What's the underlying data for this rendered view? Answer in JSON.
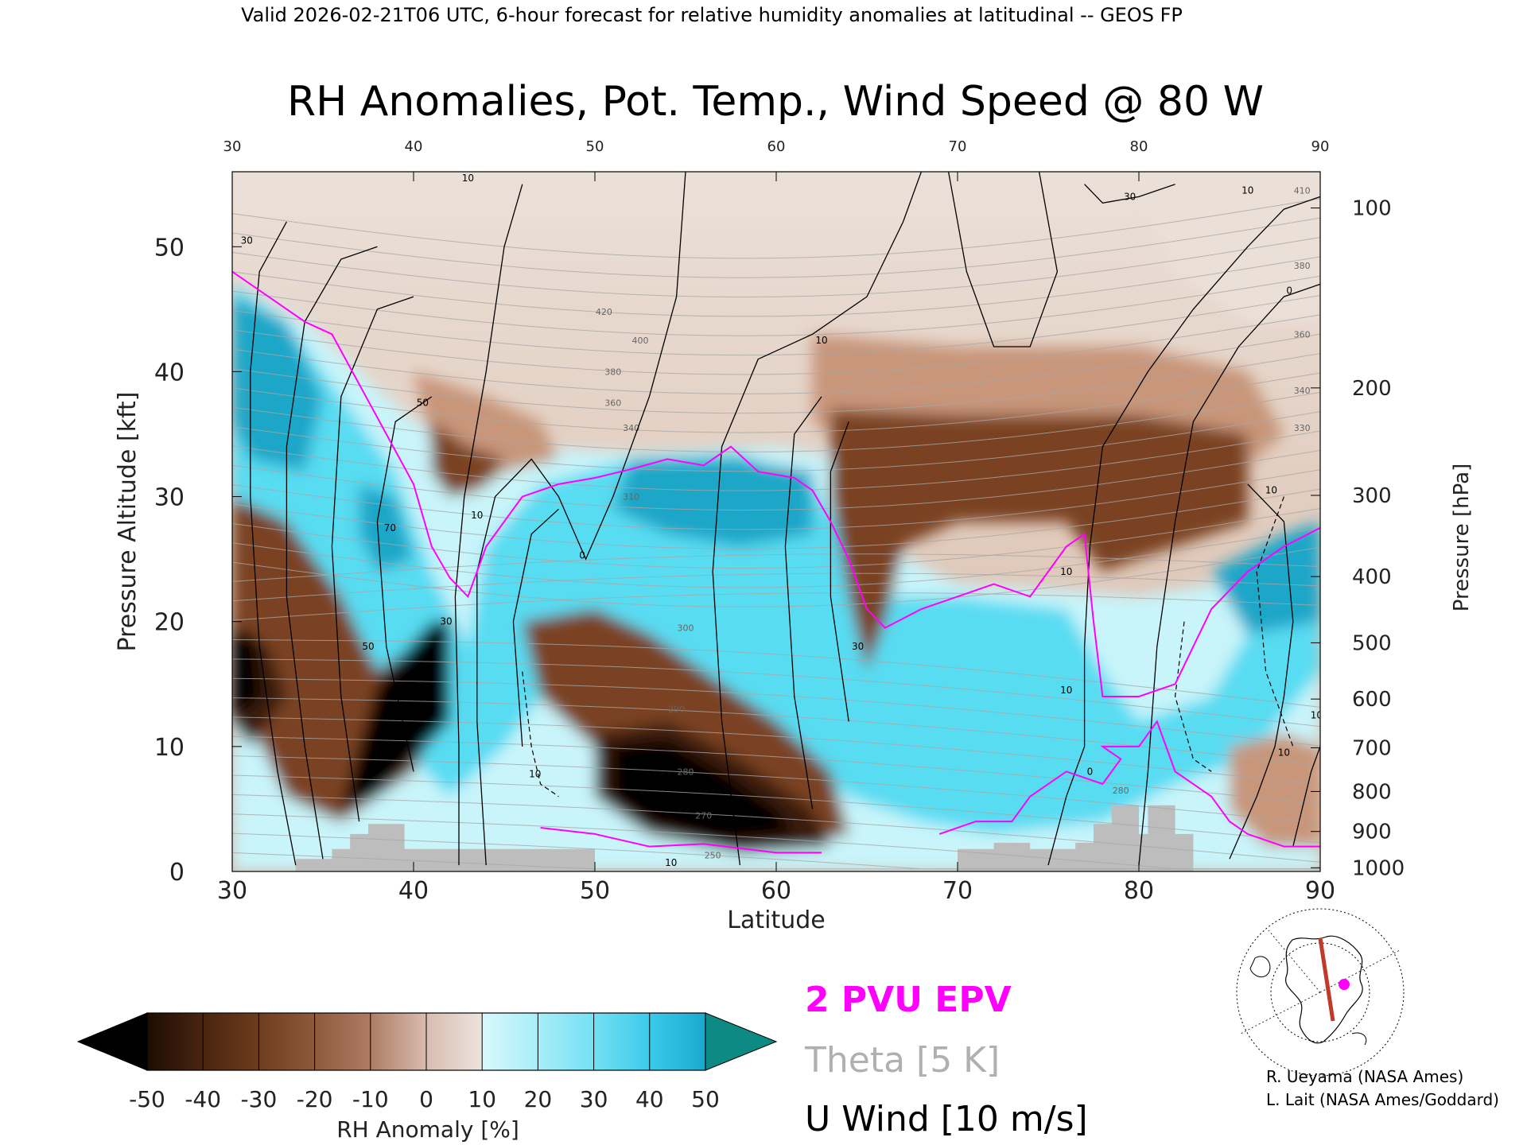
{
  "header": {
    "valid_line": "Valid 2026-02-21T06 UTC, 6-hour forecast for relative humidity anomalies at latitudinal -- GEOS FP",
    "title": "RH Anomalies, Pot. Temp., Wind Speed @ 80 W"
  },
  "colors": {
    "dry_extreme": "#000000",
    "dry_strong": "#3a1a08",
    "dry": "#7a4220",
    "dry_light": "#c8967a",
    "neutral": "#ebe0d8",
    "moist_light": "#c8f4fa",
    "moist": "#58dcf2",
    "moist_strong": "#1aa6c8",
    "moist_extreme": "#0e8a84",
    "epv_line": "#ff00ff",
    "theta_line": "#a8a8a8",
    "wind_line": "#000000",
    "terrain": "#bdbdbd"
  },
  "chart_data": {
    "type": "heatmap",
    "xlabel": "Latitude",
    "ylabel": "Pressure Altitude [kft]",
    "y2label": "Pressure [hPa]",
    "xlim": [
      30,
      90
    ],
    "ylim": [
      0,
      56
    ],
    "xticks": [
      "30",
      "40",
      "50",
      "60",
      "70",
      "80",
      "90"
    ],
    "top_ticks": [
      "30",
      "40",
      "50",
      "60",
      "70",
      "80",
      "90"
    ],
    "yticks": [
      "0",
      "10",
      "20",
      "30",
      "40",
      "50"
    ],
    "pressure_ticks": [
      {
        "label": "100",
        "kft": 53.1
      },
      {
        "label": "200",
        "kft": 38.7
      },
      {
        "label": "300",
        "kft": 30.1
      },
      {
        "label": "400",
        "kft": 23.6
      },
      {
        "label": "500",
        "kft": 18.3
      },
      {
        "label": "600",
        "kft": 13.8
      },
      {
        "label": "700",
        "kft": 9.9
      },
      {
        "label": "800",
        "kft": 6.4
      },
      {
        "label": "900",
        "kft": 3.2
      },
      {
        "label": "1000",
        "kft": 0.3
      }
    ],
    "theta_labels": [
      {
        "label": "420",
        "lat": 50.5,
        "kft": 44.8
      },
      {
        "label": "400",
        "lat": 52.5,
        "kft": 42.5
      },
      {
        "label": "380",
        "lat": 51.0,
        "kft": 40.0
      },
      {
        "label": "360",
        "lat": 51.0,
        "kft": 37.5
      },
      {
        "label": "340",
        "lat": 52.0,
        "kft": 35.5
      },
      {
        "label": "310",
        "lat": 52.0,
        "kft": 30.0
      },
      {
        "label": "300",
        "lat": 55.0,
        "kft": 19.5
      },
      {
        "label": "290",
        "lat": 54.5,
        "kft": 13.0
      },
      {
        "label": "280",
        "lat": 55.0,
        "kft": 8.0
      },
      {
        "label": "270",
        "lat": 56.0,
        "kft": 4.5
      },
      {
        "label": "250",
        "lat": 56.5,
        "kft": 1.3
      },
      {
        "label": "410",
        "lat": 89.0,
        "kft": 54.5
      },
      {
        "label": "380",
        "lat": 89.0,
        "kft": 48.5
      },
      {
        "label": "360",
        "lat": 89.0,
        "kft": 43.0
      },
      {
        "label": "340",
        "lat": 89.0,
        "kft": 38.5
      },
      {
        "label": "330",
        "lat": 89.0,
        "kft": 35.5
      },
      {
        "label": "280",
        "lat": 79.0,
        "kft": 6.5
      }
    ],
    "wind_labels": [
      {
        "label": "10",
        "lat": 43.0,
        "kft": 55.5
      },
      {
        "label": "30",
        "lat": 30.8,
        "kft": 50.5
      },
      {
        "label": "50",
        "lat": 40.5,
        "kft": 37.5
      },
      {
        "label": "70",
        "lat": 38.7,
        "kft": 27.5
      },
      {
        "label": "30",
        "lat": 41.8,
        "kft": 20.0
      },
      {
        "label": "50",
        "lat": 37.5,
        "kft": 18.0
      },
      {
        "label": "10",
        "lat": 43.5,
        "kft": 28.5
      },
      {
        "label": "0",
        "lat": 49.3,
        "kft": 25.3
      },
      {
        "label": "10",
        "lat": 62.5,
        "kft": 42.5
      },
      {
        "label": "30",
        "lat": 64.5,
        "kft": 18.0
      },
      {
        "label": "10",
        "lat": 76.0,
        "kft": 24.0
      },
      {
        "label": "10",
        "lat": 76.0,
        "kft": 14.5
      },
      {
        "label": "0",
        "lat": 77.3,
        "kft": 8.0
      },
      {
        "label": "30",
        "lat": 79.5,
        "kft": 54.0
      },
      {
        "label": "10",
        "lat": 86.0,
        "kft": 54.5
      },
      {
        "label": "0",
        "lat": 88.3,
        "kft": 46.5
      },
      {
        "label": "10",
        "lat": 87.3,
        "kft": 30.5
      },
      {
        "label": "10",
        "lat": 89.8,
        "kft": 12.5
      },
      {
        "label": "10",
        "lat": 88.0,
        "kft": 9.5
      },
      {
        "label": "10",
        "lat": 46.7,
        "kft": 7.8
      },
      {
        "label": "10",
        "lat": 54.2,
        "kft": 0.7
      }
    ],
    "terrain": [
      {
        "lat": 33.5,
        "kft": 1.0
      },
      {
        "lat": 35.5,
        "kft": 1.0
      },
      {
        "lat": 35.5,
        "kft": 1.8
      },
      {
        "lat": 36.5,
        "kft": 1.8
      },
      {
        "lat": 36.5,
        "kft": 3.0
      },
      {
        "lat": 37.5,
        "kft": 3.0
      },
      {
        "lat": 37.5,
        "kft": 3.8
      },
      {
        "lat": 39.5,
        "kft": 3.8
      },
      {
        "lat": 39.5,
        "kft": 1.8
      },
      {
        "lat": 50.0,
        "kft": 1.8
      },
      {
        "lat": 50.0,
        "kft": 0
      },
      {
        "lat": 70.0,
        "kft": 0
      },
      {
        "lat": 70.0,
        "kft": 1.8
      },
      {
        "lat": 72.0,
        "kft": 1.8
      },
      {
        "lat": 72.0,
        "kft": 2.3
      },
      {
        "lat": 74.0,
        "kft": 2.3
      },
      {
        "lat": 74.0,
        "kft": 1.8
      },
      {
        "lat": 76.5,
        "kft": 1.8
      },
      {
        "lat": 76.5,
        "kft": 2.3
      },
      {
        "lat": 77.5,
        "kft": 2.3
      },
      {
        "lat": 77.5,
        "kft": 3.8
      },
      {
        "lat": 78.5,
        "kft": 3.8
      },
      {
        "lat": 78.5,
        "kft": 5.3
      },
      {
        "lat": 80.0,
        "kft": 5.3
      },
      {
        "lat": 80.0,
        "kft": 3.0
      },
      {
        "lat": 80.5,
        "kft": 3.0
      },
      {
        "lat": 80.5,
        "kft": 5.3
      },
      {
        "lat": 82.0,
        "kft": 5.3
      },
      {
        "lat": 82.0,
        "kft": 3.0
      },
      {
        "lat": 83.0,
        "kft": 3.0
      },
      {
        "lat": 83.0,
        "kft": 0
      }
    ],
    "colorbar": {
      "label": "RH Anomaly [%]",
      "ticks": [
        "-50",
        "-40",
        "-30",
        "-20",
        "-10",
        "0",
        "10",
        "20",
        "30",
        "40",
        "50"
      ]
    }
  },
  "legend": {
    "epv": "2 PVU EPV",
    "theta": "Theta [5 K]",
    "wind": "U Wind [10 m/s]"
  },
  "credits": {
    "line1": "R. Ueyama (NASA Ames)",
    "line2": "L. Lait (NASA Ames/Goddard)"
  }
}
